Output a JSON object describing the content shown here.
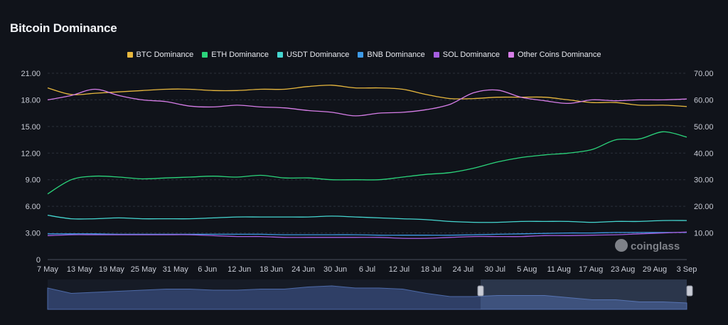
{
  "title": "Bitcoin Dominance",
  "watermark": "coinglass",
  "chart_data": {
    "type": "line",
    "title": "Bitcoin Dominance",
    "x_tick_labels": [
      "7 May",
      "13 May",
      "19 May",
      "25 May",
      "31 May",
      "6 Jun",
      "12 Jun",
      "18 Jun",
      "24 Jun",
      "30 Jun",
      "6 Jul",
      "12 Jul",
      "18 Jul",
      "24 Jul",
      "30 Jul",
      "5 Aug",
      "11 Aug",
      "17 Aug",
      "23 Aug",
      "29 Aug",
      "3 Sep"
    ],
    "y_left": {
      "ticks": [
        "0",
        "3.00",
        "6.00",
        "9.00",
        "12.00",
        "15.00",
        "18.00",
        "21.00"
      ],
      "range": [
        0,
        21
      ]
    },
    "y_right": {
      "ticks": [
        "10.00",
        "20.00",
        "30.00",
        "40.00",
        "50.00",
        "60.00",
        "70.00"
      ],
      "range": [
        0,
        70
      ]
    },
    "grid": "horizontal dashed",
    "legend_position": "top-center",
    "series": [
      {
        "name": "BTC Dominance",
        "color": "#e8b83e",
        "axis": "right",
        "values": [
          64.5,
          62,
          62.5,
          63,
          63.5,
          64,
          64,
          63.5,
          63.5,
          64,
          64,
          65,
          65.5,
          64.5,
          64.5,
          64,
          62,
          60.5,
          60.5,
          61,
          61,
          61,
          60,
          59,
          59,
          58,
          58,
          57.5
        ]
      },
      {
        "name": "ETH Dominance",
        "color": "#2bd47b",
        "axis": "left",
        "values": [
          7.4,
          9,
          9.4,
          9.3,
          9.1,
          9.2,
          9.3,
          9.4,
          9.3,
          9.5,
          9.2,
          9.2,
          9.0,
          9.0,
          9.0,
          9.3,
          9.6,
          9.8,
          10.3,
          11,
          11.5,
          11.8,
          12,
          12.4,
          13.5,
          13.6,
          14.4,
          13.8
        ]
      },
      {
        "name": "USDT Dominance",
        "color": "#45d6d0",
        "axis": "left",
        "values": [
          5.0,
          4.6,
          4.6,
          4.7,
          4.6,
          4.6,
          4.6,
          4.7,
          4.8,
          4.8,
          4.8,
          4.8,
          4.9,
          4.8,
          4.7,
          4.6,
          4.5,
          4.3,
          4.2,
          4.2,
          4.3,
          4.3,
          4.3,
          4.2,
          4.3,
          4.3,
          4.4,
          4.4
        ]
      },
      {
        "name": "BNB Dominance",
        "color": "#3e9be8",
        "axis": "left",
        "values": [
          2.9,
          2.9,
          2.9,
          2.85,
          2.85,
          2.85,
          2.85,
          2.85,
          2.85,
          2.85,
          2.8,
          2.8,
          2.8,
          2.8,
          2.75,
          2.75,
          2.75,
          2.75,
          2.8,
          2.85,
          2.9,
          2.95,
          3.0,
          3.0,
          3.05,
          3.05,
          3.05,
          3.05
        ]
      },
      {
        "name": "SOL Dominance",
        "color": "#a55ee0",
        "axis": "left",
        "values": [
          2.7,
          2.8,
          2.8,
          2.8,
          2.8,
          2.8,
          2.8,
          2.7,
          2.6,
          2.6,
          2.5,
          2.5,
          2.5,
          2.5,
          2.5,
          2.4,
          2.4,
          2.5,
          2.6,
          2.6,
          2.6,
          2.7,
          2.7,
          2.75,
          2.8,
          2.9,
          3.0,
          3.1
        ]
      },
      {
        "name": "Other Coins Dominance",
        "color": "#d77ee8",
        "axis": "left",
        "values": [
          18.0,
          18.5,
          19.2,
          18.5,
          18.0,
          17.8,
          17.3,
          17.2,
          17.4,
          17.2,
          17.1,
          16.8,
          16.6,
          16.2,
          16.5,
          16.6,
          16.9,
          17.5,
          18.8,
          19.1,
          18.3,
          17.9,
          17.6,
          18.0,
          17.9,
          18.0,
          18.0,
          18.1
        ]
      }
    ]
  }
}
